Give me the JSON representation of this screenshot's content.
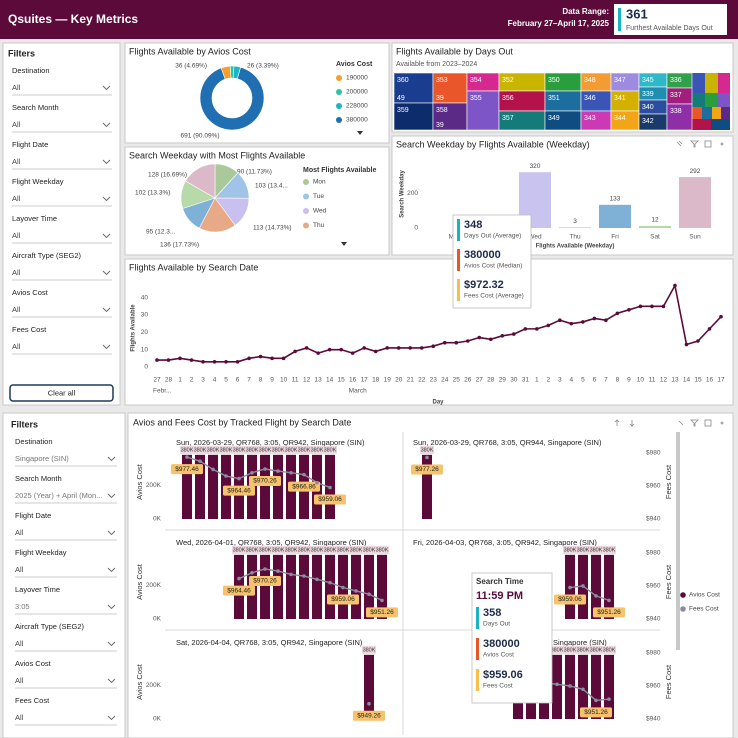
{
  "header": {
    "title": "Qsuites — Key Metrics",
    "range_label": "Data Range:",
    "range": "February 27–April 17, 2025",
    "card": {
      "value": 361,
      "label": "Furthest Available Days Out"
    }
  },
  "filters_top": {
    "title": "Filters",
    "items": [
      {
        "label": "Destination",
        "value": "All"
      },
      {
        "label": "Search Month",
        "value": "All"
      },
      {
        "label": "Flight Date",
        "value": "All"
      },
      {
        "label": "Flight Weekday",
        "value": "All"
      },
      {
        "label": "Layover Time",
        "value": "All"
      },
      {
        "label": "Aircraft Type (SEG2)",
        "value": "All"
      },
      {
        "label": "Avios Cost",
        "value": "All"
      },
      {
        "label": "Fees Cost",
        "value": "All"
      }
    ],
    "button": "Clear all"
  },
  "avios_donut": {
    "type": "pie",
    "title": "Flights Available by Avios Cost",
    "legend_title": "Avios Cost",
    "categories": [
      190000,
      200000,
      228000,
      380000
    ],
    "values": [
      36,
      14,
      26,
      691
    ],
    "value_labels": [
      "36 (4.69%)",
      null,
      "26 (3.39%)",
      "691 (90.09%)"
    ],
    "colors": [
      "#f5a02a",
      "#2dc49b",
      "#1bb5cb",
      "#1f6fb2"
    ]
  },
  "days_treemap": {
    "title": "Flights Available by Days Out",
    "subtitle": "Available from 2023–2024",
    "cells": [
      {
        "label": "360",
        "sublabel": "49",
        "color": "#1a3d8f"
      },
      {
        "label": "359",
        "sublabel": null,
        "color": "#0d2c6b"
      },
      {
        "label": "353",
        "sublabel": "39",
        "color": "#e8562a"
      },
      {
        "label": "358",
        "sublabel": "39",
        "color": "#5b2a86"
      },
      {
        "label": "354",
        "sublabel": null,
        "color": "#d6298f"
      },
      {
        "label": "355",
        "sublabel": null,
        "color": "#7d55c7"
      },
      {
        "label": "352",
        "sublabel": null,
        "color": "#c9b400"
      },
      {
        "label": "356",
        "sublabel": null,
        "color": "#b4124a"
      },
      {
        "label": "357",
        "sublabel": null,
        "color": "#147a7a"
      },
      {
        "label": "350",
        "sublabel": null,
        "color": "#2a9d3c"
      },
      {
        "label": "351",
        "sublabel": null,
        "color": "#1c6e9f"
      },
      {
        "label": "349",
        "sublabel": null,
        "color": "#0f4c81"
      },
      {
        "label": "348",
        "sublabel": null,
        "color": "#f39c33"
      },
      {
        "label": "346",
        "sublabel": null,
        "color": "#3a55b5"
      },
      {
        "label": "343",
        "sublabel": null,
        "color": "#cc39b5"
      },
      {
        "label": "347",
        "sublabel": null,
        "color": "#9e8be0"
      },
      {
        "label": "341",
        "sublabel": null,
        "color": "#d4b000"
      },
      {
        "label": "344",
        "sublabel": null,
        "color": "#f2a516"
      },
      {
        "label": "345",
        "sublabel": null,
        "color": "#2fb8c8"
      },
      {
        "label": "339",
        "sublabel": null,
        "color": "#1e8fb0"
      },
      {
        "label": "340",
        "sublabel": null,
        "color": "#2b4f9e"
      },
      {
        "label": "342",
        "sublabel": null,
        "color": "#1a3a6b"
      },
      {
        "label": "336",
        "sublabel": null,
        "color": "#30a04a"
      },
      {
        "label": "337",
        "sublabel": null,
        "color": "#a21e7e"
      },
      {
        "label": "338",
        "sublabel": null,
        "color": "#8e2fa8"
      }
    ]
  },
  "weekday_pie": {
    "type": "pie",
    "title": "Search Weekday with Most Flights Available",
    "legend_title": "Most Flights Available",
    "categories": [
      "Mon",
      "Tue",
      "Wed",
      "Thu",
      null,
      null,
      null
    ],
    "values": [
      90,
      103,
      113,
      136,
      95,
      102,
      128
    ],
    "value_labels": [
      "90 (11.73%)",
      "103 (13.4...",
      "113 (14.73%)",
      "136 (17.73%)",
      "95 (12.3...",
      "102 (13.3%)",
      "128 (16.69%)"
    ],
    "colors": [
      "#a9c99a",
      "#9fc4e8",
      "#c9bff0",
      "#e8a986",
      "#7fb0d6",
      "#b8d9a9",
      "#dbb9c9"
    ]
  },
  "weekday_bar": {
    "type": "bar",
    "title": "Search Weekday by Flights Available (Weekday)",
    "y_label": "Search Weekday",
    "x_label": "Flights Available (Weekday)",
    "categories": [
      "Mon",
      "Tue",
      "Wed",
      "Thu",
      "Fri",
      "Sat",
      "Sun"
    ],
    "values": [
      null,
      null,
      320,
      3,
      133,
      12,
      292
    ],
    "colors": [
      "#a9c99a",
      "#9fc4e8",
      "#c9c3f0",
      "#e8a986",
      "#7fb0d6",
      "#b8d9a9",
      "#dbb9c9"
    ],
    "ylim": [
      0,
      390
    ],
    "yticks": [
      0,
      200
    ]
  },
  "weekday_tooltip": {
    "rows": [
      {
        "value": "348",
        "label": "Days Out (Average)",
        "color": "#1ab3c6"
      },
      {
        "value": "380000",
        "label": "Avios Cost (Median)",
        "color": "#e8562a"
      },
      {
        "value": "$972.32",
        "label": "Fees Cost (Average)",
        "color": "#f5c04a"
      }
    ]
  },
  "date_line": {
    "type": "line",
    "title": "Flights Available by Search Date",
    "y_label": "Flights Available",
    "x_label": "Day",
    "categories": [
      "27",
      "28",
      "1",
      "2",
      "3",
      "4",
      "5",
      "6",
      "7",
      "8",
      "9",
      "10",
      "11",
      "12",
      "13",
      "14",
      "15",
      "16",
      "17",
      "18",
      "19",
      "20",
      "21",
      "22",
      "23",
      "24",
      "25",
      "26",
      "27",
      "28",
      "29",
      "30",
      "31",
      "1",
      "2",
      "3",
      "4",
      "5",
      "6",
      "7",
      "8",
      "9",
      "10",
      "11",
      "12",
      "13",
      "14",
      "15",
      "16",
      "17"
    ],
    "groups": [
      "Febr...",
      "March"
    ],
    "values": [
      4,
      4,
      5,
      4,
      3,
      3,
      3,
      3,
      5,
      6,
      5,
      5,
      9,
      11,
      8,
      10,
      10,
      8,
      11,
      9,
      11,
      11,
      11,
      11,
      12,
      14,
      14,
      15,
      17,
      16,
      18,
      19,
      22,
      22,
      24,
      27,
      25,
      26,
      28,
      27,
      31,
      33,
      35,
      35,
      35,
      47,
      13,
      15,
      22,
      29
    ],
    "color": "#5c0a3a",
    "ylim": [
      0,
      45
    ],
    "yticks": [
      0,
      10,
      20,
      30,
      40
    ]
  },
  "filters_bottom": {
    "title": "Filters",
    "items": [
      {
        "label": "Destination",
        "value": "Singapore (SIN)"
      },
      {
        "label": "Search Month",
        "value": "2025 (Year) + April (Mon..."
      },
      {
        "label": "Flight Date",
        "value": "All"
      },
      {
        "label": "Flight Weekday",
        "value": "All"
      },
      {
        "label": "Layover Time",
        "value": "3:05"
      },
      {
        "label": "Aircraft Type (SEG2)",
        "value": "All"
      },
      {
        "label": "Avios Cost",
        "value": "All"
      },
      {
        "label": "Fees Cost",
        "value": "All"
      }
    ]
  },
  "flight_costs": {
    "type": "bar",
    "title": "Avios and Fees Cost by Tracked Flight by Search Date",
    "avios_axis": {
      "title": "Avios Cost",
      "ylim": [
        0,
        450000
      ],
      "yticks": [
        {
          "value": 0,
          "label": "0K"
        },
        {
          "value": 200000,
          "label": "200K"
        }
      ]
    },
    "fees_axis": {
      "title": "Fees Cost",
      "y2lim": [
        940,
        986
      ],
      "y2ticks": [
        {
          "value": 940,
          "label": "$940"
        },
        {
          "value": 960,
          "label": "$960"
        },
        {
          "value": 980,
          "label": "$980"
        }
      ]
    },
    "legend": [
      {
        "name": "Avios Cost",
        "color": "#5c0a3a"
      },
      {
        "name": "Fees Cost",
        "color": "#8c8ca0"
      }
    ],
    "panels": [
      {
        "title": "Sun, 2026-03-29, QR768, 3:05, QR942, Singapore (SIN)",
        "avios": [
          380000,
          380000,
          380000,
          380000,
          380000,
          380000,
          380000,
          380000,
          380000,
          380000,
          380000,
          380000
        ],
        "avios_labels": [
          "380K",
          "380K",
          "380K",
          "380K",
          "380K",
          "380K",
          "380K",
          "380K",
          "380K",
          "380K",
          "380K",
          "380K"
        ],
        "fees": [
          977.46,
          975,
          970,
          966,
          964.46,
          968,
          970.26,
          969,
          968,
          966.86,
          962,
          959.06
        ],
        "fees_labels": [
          "$977.46",
          null,
          null,
          null,
          "$964.46",
          null,
          "$970.26",
          null,
          null,
          "$966.86",
          null,
          "$959.06"
        ]
      },
      {
        "title": "Sun, 2026-03-29, QR768, 3:05, QR944, Singapore (SIN)",
        "avios": [
          380000
        ],
        "avios_labels": [
          "380K"
        ],
        "fees": [
          977.26
        ],
        "fees_labels": [
          "$977.26"
        ]
      },
      {
        "title": "Wed, 2026-04-01, QR768, 3:05, QR942, Singapore (SIN)",
        "avios": [
          380000,
          380000,
          380000,
          380000,
          380000,
          380000,
          380000,
          380000,
          380000,
          380000,
          380000,
          380000
        ],
        "avios_labels": [
          "380K",
          "380K",
          "380K",
          "380K",
          "380K",
          "380K",
          "380K",
          "380K",
          "380K",
          "380K",
          "380K",
          "380K"
        ],
        "fees": [
          964.46,
          968,
          970.26,
          969,
          967,
          966,
          964,
          962,
          959.06,
          957,
          955,
          951.26
        ],
        "fees_labels": [
          "$964.46",
          null,
          "$970.26",
          null,
          null,
          null,
          null,
          null,
          "$959.06",
          null,
          null,
          "$951.26"
        ]
      },
      {
        "title": "Fri, 2026-04-03, QR768, 3:05, QR942, Singapore (SIN)",
        "avios": [
          380000,
          380000,
          380000,
          380000
        ],
        "avios_labels": [
          "380K",
          "380K",
          "380K",
          "380K"
        ],
        "fees": [
          959.06,
          960,
          954,
          951.26
        ],
        "fees_labels": [
          "$959.06",
          null,
          null,
          "$951.26"
        ]
      },
      {
        "title": "Sat, 2026-04-04, QR768, 3:05, QR942, Singapore (SIN)",
        "avios": [
          380000
        ],
        "avios_labels": [
          "380K"
        ],
        "fees": [
          949.26
        ],
        "fees_labels": [
          "$949.26"
        ]
      },
      {
        "title": "Singapore (SIN)",
        "avios": [
          380000,
          380000,
          380000,
          380000,
          380000,
          380000,
          380000,
          380000
        ],
        "avios_labels": [
          "380K",
          "380K",
          "380K",
          "380K",
          "380K",
          "380K",
          "380K",
          "380K"
        ],
        "fees": [
          966,
          964,
          962,
          961,
          960,
          958,
          951.26,
          952
        ],
        "fees_labels": [
          null,
          null,
          null,
          null,
          null,
          null,
          "$951.26",
          null
        ]
      }
    ],
    "tooltip": {
      "title": "Search Time",
      "time": "11:59 PM",
      "rows": [
        {
          "value": "358",
          "label": "Days Out",
          "color": "#1ab3c6"
        },
        {
          "value": "380000",
          "label": "Avios Cost",
          "color": "#e8562a"
        },
        {
          "value": "$959.06",
          "label": "Fees Cost",
          "color": "#f5c04a"
        }
      ]
    }
  }
}
